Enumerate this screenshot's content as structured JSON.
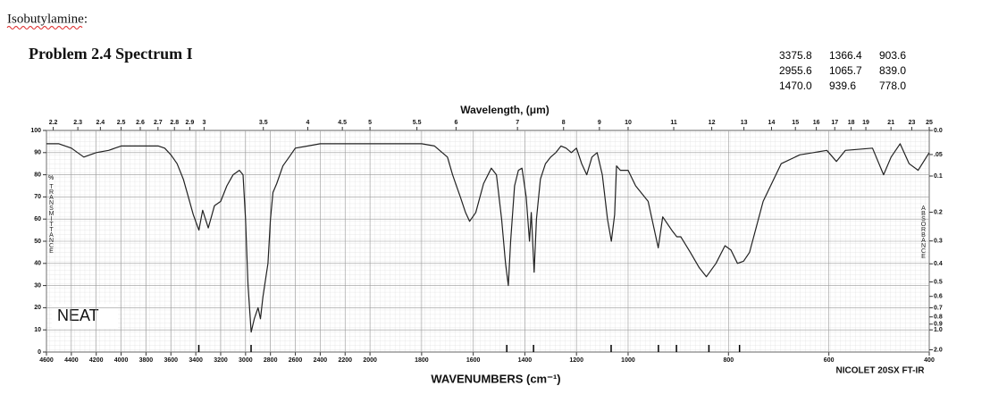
{
  "header": {
    "compound": "Isobutylamine:",
    "title": "Problem 2.4 Spectrum I",
    "peaks": [
      [
        "3375.8",
        "1366.4",
        "903.6"
      ],
      [
        "2955.6",
        "1065.7",
        "839.0"
      ],
      [
        "1470.0",
        "939.6",
        "778.0"
      ]
    ]
  },
  "chart_data": {
    "type": "line",
    "x_label": "WAVENUMBERS (cm⁻¹)",
    "x2_label": "Wavelength, (μm)",
    "y_label": "TRANSMITTANCE",
    "y_unit": "%",
    "y2_label": "ABSORBANCE",
    "annotation": "NEAT",
    "instrument": "NICOLET 20SX FT-IR",
    "color": "#222",
    "grid": true,
    "y2_scale": "absorbance",
    "xlim": [
      4600,
      400
    ],
    "xticks": [
      4600,
      4400,
      4200,
      4000,
      3800,
      3600,
      3400,
      3200,
      3000,
      2800,
      2600,
      2400,
      2200,
      2000,
      1800,
      1600,
      1400,
      1200,
      1000,
      800,
      600,
      400
    ],
    "x2ticks": [
      2.2,
      2.3,
      2.4,
      2.5,
      2.6,
      2.7,
      2.8,
      2.9,
      3,
      3.5,
      4,
      4.5,
      5,
      5.5,
      6,
      7,
      8,
      9,
      10,
      11,
      12,
      13,
      14,
      15,
      16,
      17,
      18,
      19,
      21,
      23,
      25
    ],
    "ylim": [
      0,
      100
    ],
    "yticks": [
      0,
      10,
      20,
      30,
      40,
      50,
      60,
      70,
      80,
      90,
      100
    ],
    "y2lim": [
      0,
      2
    ],
    "y2ticks": [
      {
        "value": 0,
        "label": "0.0"
      },
      {
        "value": 0.05,
        "label": ".05"
      },
      0.1,
      0.2,
      0.3,
      0.4,
      0.5,
      0.6,
      0.7,
      0.8,
      0.9,
      {
        "value": 1,
        "label": "1.0"
      },
      {
        "value": 2,
        "label": "2.0"
      }
    ],
    "x": [
      4600,
      4500,
      4400,
      4300,
      4250,
      4200,
      4100,
      4000,
      3900,
      3800,
      3700,
      3650,
      3600,
      3550,
      3500,
      3450,
      3420,
      3375,
      3345,
      3300,
      3250,
      3200,
      3150,
      3100,
      3050,
      3020,
      3000,
      2980,
      2955,
      2930,
      2900,
      2880,
      2860,
      2820,
      2800,
      2780,
      2750,
      2700,
      2650,
      2600,
      2500,
      2400,
      2200,
      2000,
      1800,
      1750,
      1700,
      1680,
      1650,
      1630,
      1614,
      1590,
      1560,
      1530,
      1510,
      1490,
      1475,
      1464,
      1455,
      1440,
      1425,
      1411,
      1395,
      1382,
      1375,
      1364,
      1355,
      1340,
      1320,
      1300,
      1280,
      1260,
      1240,
      1220,
      1200,
      1180,
      1160,
      1140,
      1120,
      1100,
      1080,
      1065,
      1052,
      1045,
      1030,
      1000,
      985,
      960,
      940,
      931,
      913,
      903,
      895,
      876,
      858,
      844,
      825,
      807,
      795,
      782,
      770,
      758,
      731,
      695,
      658,
      604,
      585,
      567,
      513,
      491,
      476,
      458,
      440,
      422,
      400
    ],
    "values": [
      94,
      94,
      92,
      88,
      89,
      90,
      91,
      93,
      93,
      93,
      93,
      92,
      89,
      85,
      78,
      68,
      62,
      55,
      64,
      56,
      66,
      68,
      75,
      80,
      82,
      80,
      60,
      30,
      9,
      15,
      20,
      15,
      25,
      40,
      60,
      72,
      76,
      84,
      88,
      92,
      93,
      94,
      94,
      94,
      94,
      93,
      88,
      80,
      70,
      63,
      59,
      63,
      76,
      83,
      80,
      60,
      40,
      30,
      50,
      75,
      82,
      83,
      70,
      50,
      63,
      36,
      60,
      78,
      85,
      88,
      90,
      93,
      92,
      90,
      92,
      85,
      80,
      88,
      90,
      80,
      60,
      50,
      62,
      84,
      82,
      82,
      75,
      68,
      47,
      61,
      55,
      52,
      52,
      45,
      38,
      34,
      40,
      48,
      46,
      40,
      41,
      45,
      68,
      85,
      89,
      91,
      86,
      91,
      92,
      80,
      88,
      94,
      85,
      82,
      90
    ]
  }
}
